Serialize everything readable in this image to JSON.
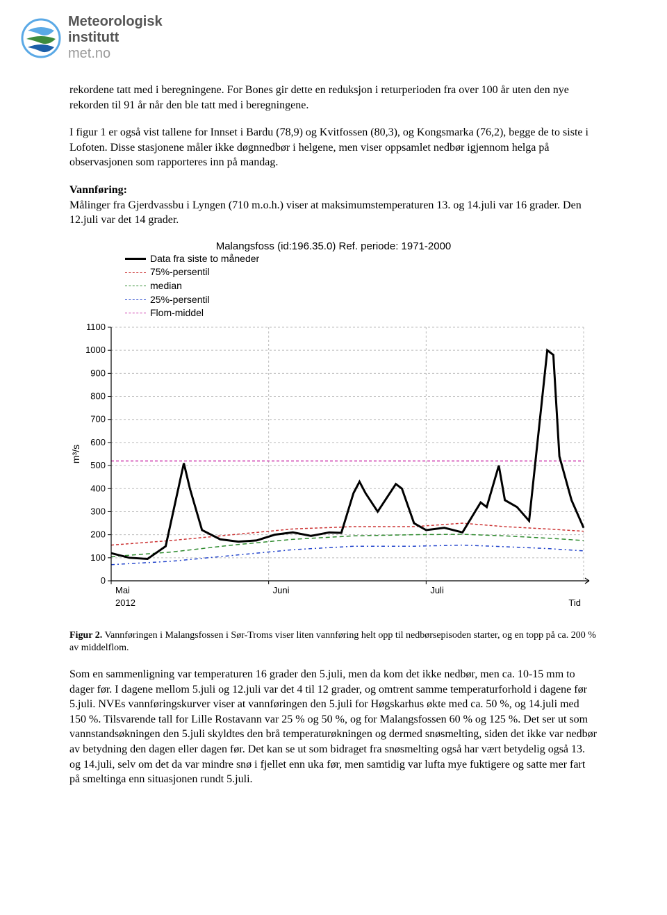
{
  "logo": {
    "line1": "Meteorologisk",
    "line2": "institutt",
    "line3": "met.no"
  },
  "paragraphs": {
    "p1": "rekordene tatt med i beregningene. For Bones gir dette en reduksjon i returperioden fra over 100 år uten den nye rekorden til 91 år når den ble tatt med i beregningene.",
    "p2": "I figur 1 er også vist tallene for Innset i Bardu (78,9) og Kvitfossen (80,3), og Kongsmarka (76,2), begge de to siste i Lofoten. Disse stasjonene måler ikke døgnnedbør i helgene, men viser oppsamlet nedbør igjennom helga på observasjonen som rapporteres inn på mandag.",
    "p3_heading": "Vannføring:",
    "p3_body": "Målinger fra Gjerdvassbu i Lyngen (710 m.o.h.) viser at maksimumstemperaturen 13. og 14.juli var 16 grader. Den 12.juli var det 14 grader.",
    "caption": "Figur 2. Vannføringen i Malangsfossen i Sør-Troms viser liten vannføring helt opp til nedbørsepisoden starter, og en topp på ca. 200 % av middelflom.",
    "p4": "Som en sammenligning var temperaturen 16 grader den 5.juli, men da kom det ikke nedbør, men ca. 10-15 mm to dager før. I dagene mellom 5.juli og 12.juli var det 4 til 12 grader, og omtrent samme temperaturforhold i dagene før 5.juli. NVEs vannføringskurver viser at vannføringen den 5.juli for Høgskarhus økte med ca. 50 %, og 14.juli med 150 %. Tilsvarende tall for Lille Rostavann var 25 % og 50 %, og for Malangsfossen 60 % og 125 %. Det ser ut som vannstandsøkningen den 5.juli skyldtes den brå temperaturøkningen og dermed snøsmelting, siden det ikke var nedbør av betydning den dagen eller dagen før. Det kan se ut som bidraget fra snøsmelting også har vært betydelig også 13. og 14.juli, selv om det da var mindre snø i fjellet enn uka før, men samtidig var lufta mye fuktigere og satte mer fart på smeltinga enn situasjonen rundt 5.juli."
  },
  "chart": {
    "type": "line",
    "title": "Malangsfoss (id:196.35.0) Ref. periode: 1971-2000",
    "legend": [
      {
        "label": "Data fra siste to måneder",
        "color": "#000000",
        "dash": "none",
        "width": 3
      },
      {
        "label": "75%-persentil",
        "color": "#cc3333",
        "dash": "4 3",
        "width": 1.5
      },
      {
        "label": "median",
        "color": "#2e8b2e",
        "dash": "6 4",
        "width": 1.5
      },
      {
        "label": "25%-persentil",
        "color": "#2244cc",
        "dash": "5 4 2 4",
        "width": 1.5
      },
      {
        "label": "Flom-middel",
        "color": "#cc33aa",
        "dash": "4 3",
        "width": 1.5
      }
    ],
    "ylabel": "m³/s",
    "ylim": [
      0,
      1100
    ],
    "ytick_step": 100,
    "x_categories": [
      "Mai",
      "Juni",
      "Juli"
    ],
    "x_year": "2012",
    "x_end_label": "Tid",
    "background_color": "#ffffff",
    "grid_color": "#bbbbbb",
    "flom_middel_value": 520,
    "series_data": {
      "data_last_two_months": [
        [
          0,
          120
        ],
        [
          3,
          100
        ],
        [
          6,
          95
        ],
        [
          9,
          150
        ],
        [
          12,
          510
        ],
        [
          13,
          400
        ],
        [
          15,
          220
        ],
        [
          18,
          180
        ],
        [
          21,
          170
        ],
        [
          24,
          175
        ],
        [
          27,
          200
        ],
        [
          30,
          210
        ],
        [
          33,
          195
        ],
        [
          36,
          210
        ],
        [
          38,
          208
        ],
        [
          40,
          380
        ],
        [
          41,
          430
        ],
        [
          42,
          380
        ],
        [
          44,
          300
        ],
        [
          47,
          420
        ],
        [
          48,
          400
        ],
        [
          50,
          250
        ],
        [
          52,
          220
        ],
        [
          55,
          230
        ],
        [
          58,
          210
        ],
        [
          61,
          340
        ],
        [
          62,
          320
        ],
        [
          64,
          500
        ],
        [
          65,
          350
        ],
        [
          67,
          320
        ],
        [
          69,
          260
        ],
        [
          72,
          1000
        ],
        [
          73,
          980
        ],
        [
          74,
          540
        ],
        [
          76,
          350
        ],
        [
          78,
          230
        ]
      ],
      "p75": [
        [
          0,
          155
        ],
        [
          10,
          175
        ],
        [
          20,
          200
        ],
        [
          30,
          225
        ],
        [
          40,
          235
        ],
        [
          50,
          235
        ],
        [
          58,
          250
        ],
        [
          65,
          235
        ],
        [
          72,
          225
        ],
        [
          78,
          215
        ]
      ],
      "median": [
        [
          0,
          105
        ],
        [
          10,
          125
        ],
        [
          20,
          155
        ],
        [
          30,
          180
        ],
        [
          40,
          195
        ],
        [
          50,
          200
        ],
        [
          58,
          202
        ],
        [
          65,
          195
        ],
        [
          72,
          185
        ],
        [
          78,
          175
        ]
      ],
      "p25": [
        [
          0,
          70
        ],
        [
          10,
          85
        ],
        [
          20,
          110
        ],
        [
          30,
          135
        ],
        [
          40,
          150
        ],
        [
          50,
          150
        ],
        [
          58,
          155
        ],
        [
          65,
          148
        ],
        [
          72,
          140
        ],
        [
          78,
          130
        ]
      ]
    }
  }
}
